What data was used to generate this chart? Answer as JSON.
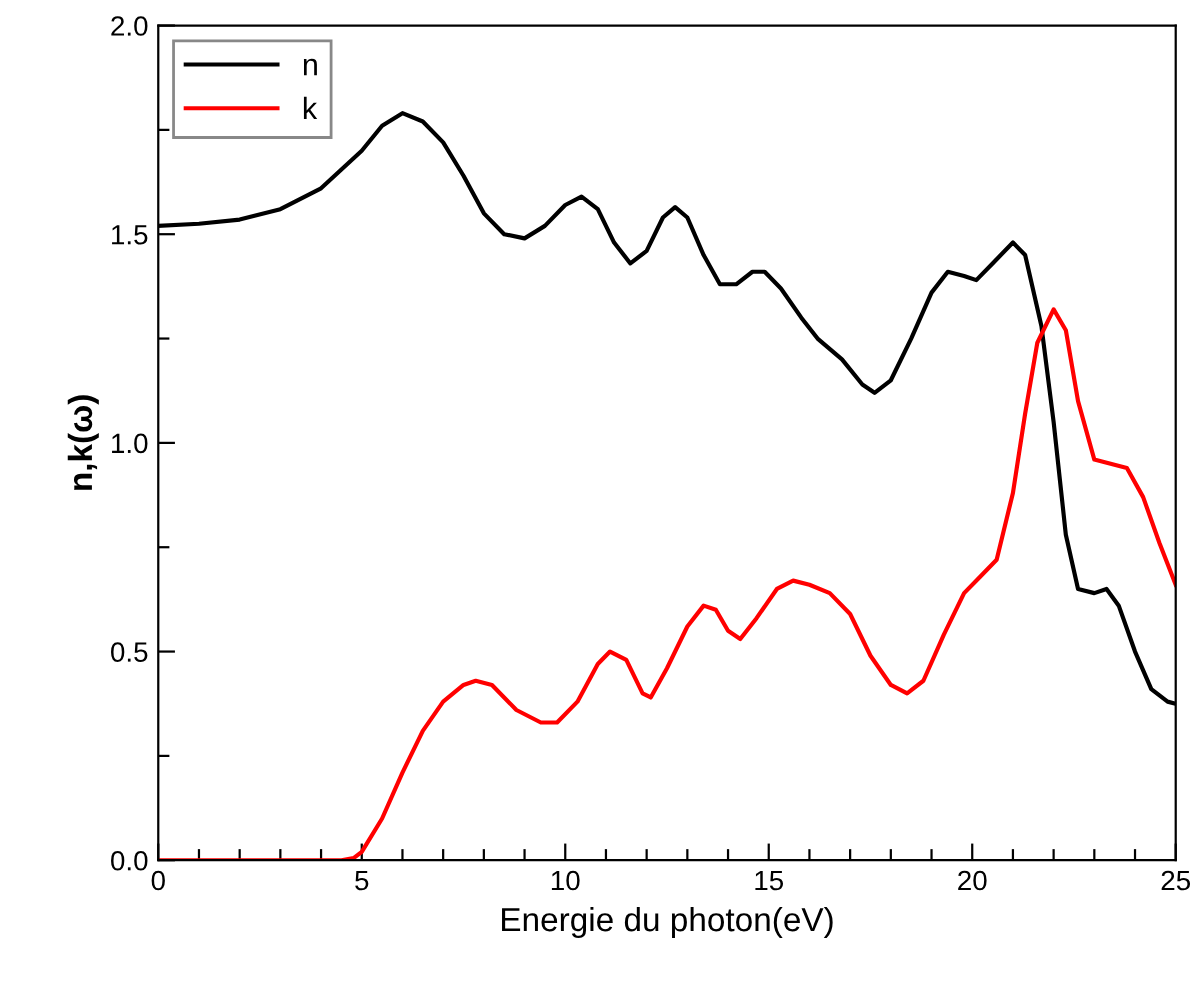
{
  "chart_data": {
    "type": "line",
    "xlabel": "Energie du photon(eV)",
    "ylabel": "n,k(ω)",
    "xlim": [
      0,
      25
    ],
    "ylim": [
      0,
      2.0
    ],
    "xticks": [
      0,
      {
        "value": 1,
        "label": null
      },
      {
        "value": 2,
        "label": null
      },
      {
        "value": 3,
        "label": null
      },
      {
        "value": 4,
        "label": null
      },
      5,
      {
        "value": 6,
        "label": null
      },
      {
        "value": 7,
        "label": null
      },
      {
        "value": 8,
        "label": null
      },
      {
        "value": 9,
        "label": null
      },
      10,
      {
        "value": 11,
        "label": null
      },
      {
        "value": 12,
        "label": null
      },
      {
        "value": 13,
        "label": null
      },
      {
        "value": 14,
        "label": null
      },
      15,
      {
        "value": 16,
        "label": null
      },
      {
        "value": 17,
        "label": null
      },
      {
        "value": 18,
        "label": null
      },
      {
        "value": 19,
        "label": null
      },
      20,
      {
        "value": 21,
        "label": null
      },
      {
        "value": 22,
        "label": null
      },
      {
        "value": 23,
        "label": null
      },
      {
        "value": 24,
        "label": null
      },
      25
    ],
    "yticks": [
      {
        "value": 0,
        "label": "0.0"
      },
      {
        "value": 0.25,
        "label": null
      },
      0.5,
      {
        "value": 0.75,
        "label": null
      },
      {
        "value": 1,
        "label": "1.0"
      },
      {
        "value": 1.25,
        "label": null
      },
      1.5,
      {
        "value": 1.75,
        "label": null
      },
      {
        "value": 2,
        "label": "2.0"
      }
    ],
    "grid": false,
    "legend": "top left",
    "marker": "none",
    "line_style": "solid",
    "series": [
      {
        "name": "n",
        "color": "#000000",
        "x": [
          0,
          1,
          2,
          3,
          4,
          5,
          5.5,
          6,
          6.5,
          7,
          7.5,
          8,
          8.5,
          9,
          9.5,
          10,
          10.4,
          10.8,
          11.2,
          11.6,
          12,
          12.4,
          12.7,
          13,
          13.4,
          13.8,
          14.2,
          14.6,
          14.9,
          15.3,
          15.8,
          16.2,
          16.8,
          17.3,
          17.6,
          18,
          18.5,
          19,
          19.4,
          19.8,
          20.1,
          20.5,
          21,
          21.3,
          21.7,
          22,
          22.3,
          22.6,
          23,
          23.3,
          23.6,
          24,
          24.4,
          24.8,
          25
        ],
        "values": [
          1.52,
          1.525,
          1.535,
          1.56,
          1.61,
          1.7,
          1.76,
          1.79,
          1.77,
          1.72,
          1.64,
          1.55,
          1.5,
          1.49,
          1.52,
          1.57,
          1.59,
          1.56,
          1.48,
          1.43,
          1.46,
          1.54,
          1.565,
          1.54,
          1.45,
          1.38,
          1.38,
          1.41,
          1.41,
          1.37,
          1.3,
          1.25,
          1.2,
          1.14,
          1.12,
          1.15,
          1.25,
          1.36,
          1.41,
          1.4,
          1.39,
          1.43,
          1.48,
          1.45,
          1.28,
          1.05,
          0.78,
          0.65,
          0.64,
          0.65,
          0.61,
          0.5,
          0.41,
          0.38,
          0.375
        ]
      },
      {
        "name": "k",
        "color": "#ff0000",
        "x": [
          0,
          4.5,
          4.8,
          5,
          5.5,
          6,
          6.5,
          7,
          7.5,
          7.8,
          8.2,
          8.8,
          9.4,
          9.8,
          10.3,
          10.8,
          11.1,
          11.5,
          11.9,
          12.1,
          12.5,
          13,
          13.4,
          13.7,
          14,
          14.3,
          14.7,
          15.2,
          15.6,
          16,
          16.5,
          17,
          17.5,
          18,
          18.4,
          18.8,
          19.3,
          19.8,
          20.2,
          20.6,
          21,
          21.3,
          21.6,
          22,
          22.3,
          22.6,
          23,
          23.4,
          23.8,
          24.2,
          24.6,
          25
        ],
        "values": [
          0,
          0,
          0.005,
          0.02,
          0.1,
          0.21,
          0.31,
          0.38,
          0.42,
          0.43,
          0.42,
          0.36,
          0.33,
          0.33,
          0.38,
          0.47,
          0.5,
          0.48,
          0.4,
          0.39,
          0.46,
          0.56,
          0.61,
          0.6,
          0.55,
          0.53,
          0.58,
          0.65,
          0.67,
          0.66,
          0.64,
          0.59,
          0.49,
          0.42,
          0.4,
          0.43,
          0.54,
          0.64,
          0.68,
          0.72,
          0.88,
          1.07,
          1.24,
          1.32,
          1.27,
          1.1,
          0.96,
          0.95,
          0.94,
          0.87,
          0.76,
          0.66
        ]
      }
    ]
  }
}
